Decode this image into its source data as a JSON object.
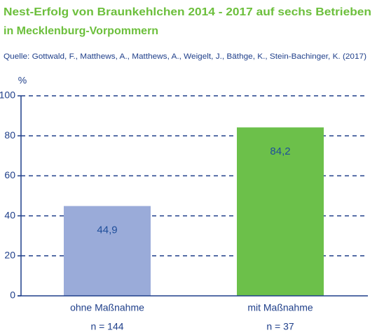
{
  "chart_data": {
    "type": "bar",
    "title": [
      "Nest-Erfolg von Braunkehlchen 2014 - 2017 auf sechs Betrieben",
      "in Mecklenburg-Vorpommern"
    ],
    "subtitle": "Quelle: Gottwald, F., Matthews, A., Matthews, A., Weigelt, J., Bäthge, K., Stein-Bachinger, K. (2017)",
    "y_label": "%",
    "categories": [
      "ohne Maßnahme",
      "mit Maßnahme"
    ],
    "category_notes": [
      "n = 144",
      "n = 37"
    ],
    "values": [
      44.9,
      84.2
    ],
    "value_labels": [
      "44,9",
      "84,2"
    ],
    "colors": [
      "#9aabd9",
      "#6cc04a"
    ],
    "ylim": [
      0,
      100
    ],
    "yticks": [
      0,
      20,
      40,
      60,
      80,
      100
    ],
    "grid": true
  }
}
